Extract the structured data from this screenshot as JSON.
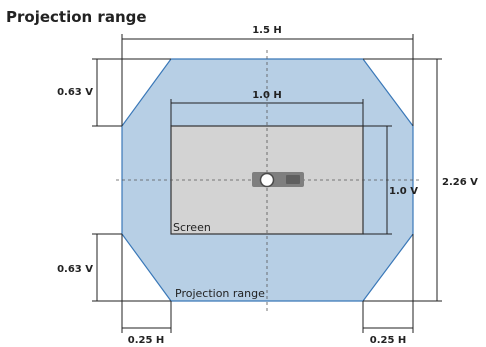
{
  "title": "Projection range",
  "dimensions": {
    "top_width": "1.5 H",
    "screen_width": "1.0 H",
    "screen_height": "1.0 V",
    "total_height": "2.26 V",
    "upper_offset": "0.63 V",
    "lower_offset": "0.63 V",
    "left_offset": "0.25 H",
    "right_offset": "0.25 H"
  },
  "labels": {
    "screen": "Screen",
    "projection_range": "Projection range"
  },
  "colors": {
    "projection_fill": "#b7cfe5",
    "projection_stroke": "#3a78b8",
    "screen_fill": "#d3d3d3",
    "screen_stroke": "#333333",
    "projector_body": "#7f7f7f"
  },
  "icons": {
    "projector": "projector-icon"
  }
}
